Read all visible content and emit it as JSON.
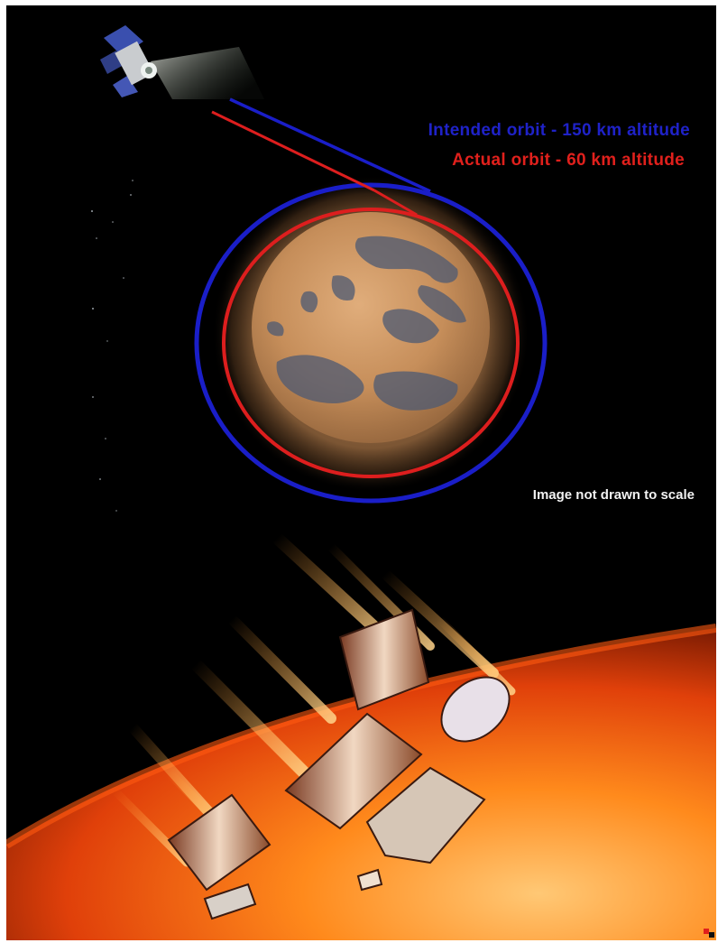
{
  "orbit_diagram": {
    "intended_label": "Intended orbit - 150 km altitude",
    "actual_label": "Actual orbit - 60 km altitude",
    "scale_note": "Image not drawn to scale",
    "colors": {
      "intended": "#1f22c8",
      "actual": "#e0201c",
      "mars": "#c98d57",
      "space": "#000000"
    }
  },
  "breakup_scene": {
    "colors": {
      "fire": "#ff7a10",
      "atmosphere": "#ffb347"
    }
  },
  "icons": [
    "spacecraft-icon",
    "mars-planet",
    "burning-spacecraft"
  ]
}
